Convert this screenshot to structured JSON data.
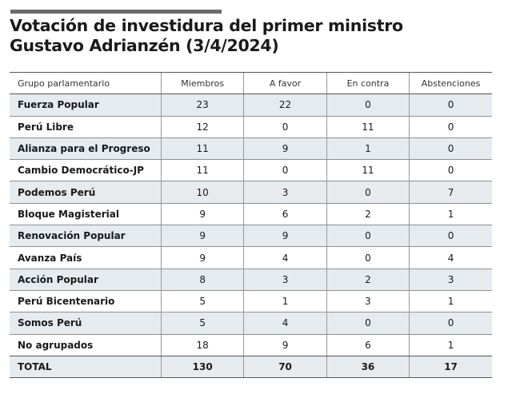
{
  "title_line1": "Votación de investidura del primer ministro",
  "title_line2": "Gustavo Adrianzén (3/4/2024)",
  "headers": [
    "Grupo parlamentario",
    "Miembros",
    "A favor",
    "En contra",
    "Abstenciones"
  ],
  "rows": [
    [
      "Fuerza Popular",
      "23",
      "22",
      "0",
      "0"
    ],
    [
      "Perú Libre",
      "12",
      "0",
      "11",
      "0"
    ],
    [
      "Alianza para el Progreso",
      "11",
      "9",
      "1",
      "0"
    ],
    [
      "Cambio Democrático-JP",
      "11",
      "0",
      "11",
      "0"
    ],
    [
      "Podemos Perú",
      "10",
      "3",
      "0",
      "7"
    ],
    [
      "Bloque Magisterial",
      "9",
      "6",
      "2",
      "1"
    ],
    [
      "Renovación Popular",
      "9",
      "9",
      "0",
      "0"
    ],
    [
      "Avanza País",
      "9",
      "4",
      "0",
      "4"
    ],
    [
      "Acción Popular",
      "8",
      "3",
      "2",
      "3"
    ],
    [
      "Perú Bicentenario",
      "5",
      "1",
      "3",
      "1"
    ],
    [
      "Somos Perú",
      "5",
      "4",
      "0",
      "0"
    ],
    [
      "No agrupados",
      "18",
      "9",
      "6",
      "1"
    ]
  ],
  "total": [
    "TOTAL",
    "130",
    "70",
    "36",
    "17"
  ]
}
